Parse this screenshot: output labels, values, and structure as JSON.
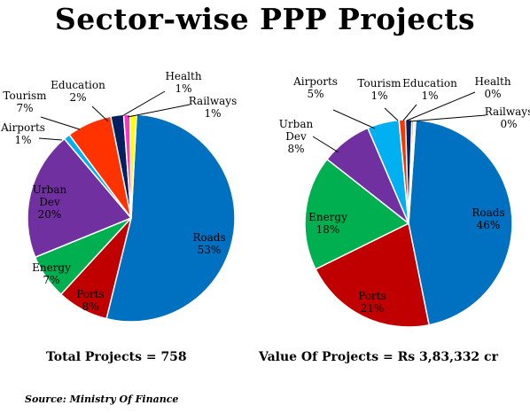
{
  "title": "Sector-wise PPP Projects",
  "chart_data": [
    {
      "type": "pie",
      "caption": "Total Projects = 758",
      "slices": [
        {
          "label": "Roads",
          "value": 53,
          "display": "53%",
          "color": "#0070C0"
        },
        {
          "label": "Ports",
          "value": 8,
          "display": "8%",
          "color": "#C00000"
        },
        {
          "label": "Energy",
          "value": 7,
          "display": "7%",
          "color": "#00B050"
        },
        {
          "label": "Urban Dev",
          "value": 20,
          "display": "20%",
          "color": "#7030A0"
        },
        {
          "label": "Airports",
          "value": 1,
          "display": "1%",
          "color": "#00B0F0"
        },
        {
          "label": "Tourism",
          "value": 7,
          "display": "7%",
          "color": "#FF3300"
        },
        {
          "label": "Education",
          "value": 2,
          "display": "2%",
          "color": "#002060"
        },
        {
          "label": "Health",
          "value": 1,
          "display": "1%",
          "color": "#FF33CC"
        },
        {
          "label": "Railways",
          "value": 1,
          "display": "1%",
          "color": "#FFFF00"
        }
      ]
    },
    {
      "type": "pie",
      "caption": "Value Of Projects = Rs 3,83,332 cr",
      "slices": [
        {
          "label": "Roads",
          "value": 46,
          "display": "46%",
          "color": "#0070C0"
        },
        {
          "label": "Ports",
          "value": 21,
          "display": "21%",
          "color": "#C00000"
        },
        {
          "label": "Energy",
          "value": 18,
          "display": "18%",
          "color": "#00B050"
        },
        {
          "label": "Urban Dev",
          "value": 8,
          "display": "8%",
          "color": "#7030A0"
        },
        {
          "label": "Airports",
          "value": 5,
          "display": "5%",
          "color": "#00B0F0"
        },
        {
          "label": "Tourism",
          "value": 1,
          "display": "1%",
          "color": "#FF3300"
        },
        {
          "label": "Education",
          "value": 1,
          "display": "1%",
          "color": "#002060"
        },
        {
          "label": "Health",
          "value": 0.3,
          "display": "0%",
          "color": "#FF33CC"
        },
        {
          "label": "Railways",
          "value": 0.3,
          "display": "0%",
          "color": "#FFFF00"
        }
      ]
    }
  ],
  "source": "Source: Ministry Of Finance"
}
